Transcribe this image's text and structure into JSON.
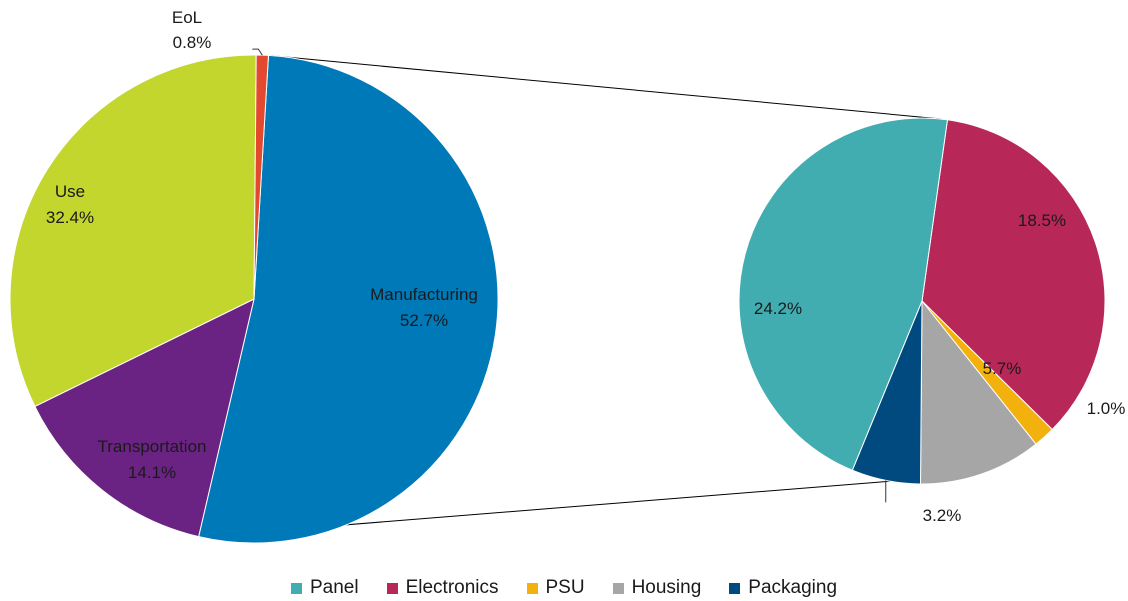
{
  "chart_data": [
    {
      "type": "pie",
      "categories": [
        "Manufacturing",
        "Transportation",
        "Use",
        "EoL"
      ],
      "values": [
        52.7,
        14.1,
        32.4,
        0.8
      ],
      "colors": [
        "#0079b8",
        "#6a2383",
        "#c2d62e",
        "#e2492f"
      ],
      "data_labels": [
        {
          "name": "Manufacturing",
          "value": "52.7%"
        },
        {
          "name": "Transportation",
          "value": "14.1%"
        },
        {
          "name": "Use",
          "value": "32.4%"
        },
        {
          "name": "EoL",
          "value": "0.8%"
        }
      ]
    },
    {
      "type": "pie",
      "categories": [
        "Electronics",
        "PSU",
        "Housing",
        "Packaging",
        "Panel"
      ],
      "values": [
        18.5,
        1.0,
        5.7,
        3.2,
        24.2
      ],
      "colors": [
        "#b72858",
        "#f2b10c",
        "#a6a6a6",
        "#004a7f",
        "#42adb0"
      ],
      "data_labels": [
        "18.5%",
        "1.0%",
        "5.7%",
        "3.2%",
        "24.2%"
      ],
      "legend": [
        {
          "name": "Panel",
          "color": "#42adb0"
        },
        {
          "name": "Electronics",
          "color": "#b72858"
        },
        {
          "name": "PSU",
          "color": "#f2b10c"
        },
        {
          "name": "Housing",
          "color": "#a6a6a6"
        },
        {
          "name": "Packaging",
          "color": "#004a7f"
        }
      ],
      "legend_position": "bottom"
    }
  ]
}
